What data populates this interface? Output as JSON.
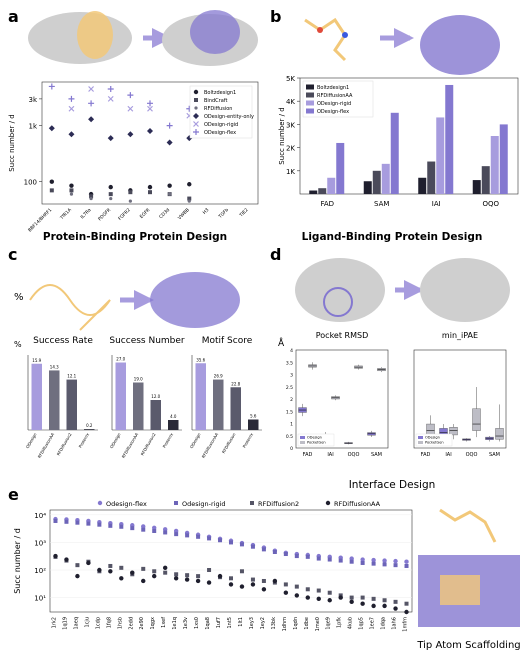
{
  "colors": {
    "purple": "#8478d0",
    "purpleLight": "#a79cde",
    "dark": "#1f1f2e",
    "gray": "#6f6f7f",
    "lightgray": "#c9c9d3",
    "structure": "#cfcfcf",
    "ligand": "#f2c879"
  },
  "panels": {
    "a": {
      "letter": "a",
      "title": "Protein-Binding Protein Design",
      "ylabel": "Succ number / d",
      "legend": [
        "Boltzdesign1",
        "BindCraft",
        "RFDiffusion",
        "ODesign-entity-only",
        "ODesign-rigid",
        "ODesign-flex"
      ],
      "chart_data": {
        "type": "scatter",
        "yscale": "log",
        "ylim": [
          40,
          6000
        ],
        "yticks": [
          "100",
          "1k",
          "3k"
        ],
        "categories": [
          "BBF14/BHRF1",
          "TfR1A",
          "IL7Ra",
          "PDGFR",
          "FGFR2",
          "EGFR",
          "CD3d",
          "VWBB",
          "H3",
          "TGFb",
          "TIE2"
        ],
        "series": [
          {
            "name": "Boltzdesign1",
            "marker": "circle",
            "values": [
              100,
              85,
              60,
              80,
              70,
              80,
              85,
              90,
              null,
              null,
              null
            ]
          },
          {
            "name": "BindCraft",
            "marker": "square",
            "values": [
              70,
              70,
              55,
              60,
              65,
              65,
              60,
              50,
              null,
              null,
              null
            ]
          },
          {
            "name": "RFDiffusion",
            "marker": "circle-small",
            "values": [
              null,
              60,
              50,
              50,
              45,
              null,
              60,
              45,
              null,
              null,
              null
            ]
          },
          {
            "name": "ODesign-entity-only",
            "marker": "diamond",
            "values": [
              900,
              700,
              1300,
              600,
              700,
              800,
              500,
              600,
              null,
              null,
              null
            ]
          },
          {
            "name": "ODesign-rigid",
            "marker": "x",
            "values": [
              null,
              2000,
              4500,
              3000,
              2000,
              2000,
              null,
              1500,
              null,
              null,
              null
            ]
          },
          {
            "name": "ODesign-flex",
            "marker": "plus",
            "values": [
              5000,
              3000,
              2500,
              4500,
              3500,
              2500,
              1000,
              2000,
              null,
              null,
              null
            ]
          }
        ]
      }
    },
    "b": {
      "letter": "b",
      "title": "Ligand-Binding Protein Design",
      "ylabel": "Succ number / d",
      "legend": [
        "Boltzdesign1",
        "RFDiffusionAA",
        "ODesign-rigid",
        "ODesign-flex"
      ],
      "chart_data": {
        "type": "bar",
        "ylim": [
          0,
          5000
        ],
        "yticks": [
          "1K",
          "2K",
          "3K",
          "4K",
          "5K"
        ],
        "categories": [
          "FAD",
          "SAM",
          "IAI",
          "OQO"
        ],
        "series": [
          {
            "name": "Boltzdesign1",
            "values": [
              150,
              550,
              700,
              600
            ]
          },
          {
            "name": "RFDiffusionAA",
            "values": [
              250,
              1000,
              1400,
              1200
            ]
          },
          {
            "name": "ODesign-rigid",
            "values": [
              700,
              1300,
              3300,
              2500
            ]
          },
          {
            "name": "ODesign-flex",
            "values": [
              2200,
              3500,
              4700,
              3000
            ]
          }
        ]
      }
    },
    "c": {
      "letter": "c",
      "pct_label": "%",
      "charts": [
        {
          "title": "Success Rate",
          "ylabel": "%",
          "type": "bar",
          "categories": [
            "ODesign",
            "RFDiffusionAA",
            "RFDiffusion2",
            "Protenix"
          ],
          "values": [
            15.9,
            14.3,
            12.1,
            0.2
          ],
          "labels": [
            "15.9",
            "14.3",
            "12.1",
            "0.2"
          ],
          "ylim": [
            0,
            18
          ]
        },
        {
          "title": "Success Number",
          "type": "bar",
          "categories": [
            "ODesign",
            "RFDiffusionAA",
            "RFDiffusion2",
            "Protenix"
          ],
          "values": [
            27.0,
            19.0,
            12.0,
            4.0
          ],
          "labels": [
            "27.0",
            "19.0",
            "12.0",
            "4.0"
          ],
          "ylim": [
            0,
            30
          ]
        },
        {
          "title": "Motif Score",
          "type": "bar",
          "categories": [
            "ODesign",
            "RFDiffusionAA",
            "RFDiffusion",
            "Protenix"
          ],
          "values": [
            35.6,
            26.9,
            22.8,
            5.6
          ],
          "labels": [
            "35.6",
            "26.9",
            "22.8",
            "5.6"
          ],
          "ylim": [
            0,
            40
          ]
        }
      ]
    },
    "d": {
      "letter": "d",
      "title": "Interface Design",
      "angstrom": "Å",
      "charts": [
        {
          "title": "Pocket RMSD",
          "type": "box",
          "categories": [
            "FAD",
            "IAI",
            "OQO",
            "SAM"
          ],
          "yticks": [
            "0",
            "0.5",
            "1",
            "1.5",
            "2",
            "2.5",
            "3",
            "3.5",
            "4"
          ],
          "ylim": [
            0,
            4
          ],
          "legend": [
            "ODesign",
            "PocketGen"
          ],
          "series": [
            {
              "name": "ODesign",
              "boxes": [
                [
                  1.3,
                  1.45,
                  1.55,
                  1.65,
                  1.8
                ],
                [
                  0.35,
                  0.4,
                  0.5,
                  0.55,
                  0.65
                ],
                [
                  0.15,
                  0.18,
                  0.2,
                  0.22,
                  0.25
                ],
                [
                  0.45,
                  0.52,
                  0.58,
                  0.63,
                  0.7
                ]
              ]
            },
            {
              "name": "PocketGen",
              "boxes": [
                [
                  3.2,
                  3.3,
                  3.35,
                  3.4,
                  3.5
                ],
                [
                  1.95,
                  2.0,
                  2.05,
                  2.1,
                  2.15
                ],
                [
                  3.2,
                  3.25,
                  3.3,
                  3.35,
                  3.4
                ],
                [
                  3.1,
                  3.15,
                  3.2,
                  3.25,
                  3.3
                ]
              ]
            }
          ]
        },
        {
          "title": "min_iPAE",
          "type": "box",
          "categories": [
            "FAD",
            "IAI",
            "OQO",
            "SAM"
          ],
          "yticks": [
            "0",
            "0.5",
            "1",
            "1.5",
            "2",
            "2.5",
            "3",
            "3.5",
            "4",
            "4.5"
          ],
          "ylim": [
            0,
            4.5
          ],
          "legend": [
            "ODesign",
            "PocketGen"
          ],
          "series": [
            {
              "name": "ODesign",
              "boxes": [
                [
                  0.45,
                  0.48,
                  0.5,
                  0.52,
                  0.55
                ],
                [
                  0.5,
                  0.6,
                  0.7,
                  0.9,
                  1.1
                ],
                [
                  0.3,
                  0.35,
                  0.38,
                  0.42,
                  0.45
                ],
                [
                  0.3,
                  0.38,
                  0.45,
                  0.5,
                  0.55
                ]
              ]
            },
            {
              "name": "PocketGen",
              "boxes": [
                [
                  0.4,
                  0.55,
                  0.8,
                  1.1,
                  1.5
                ],
                [
                  0.4,
                  0.6,
                  0.8,
                  0.95,
                  1.1
                ],
                [
                  0.5,
                  0.8,
                  1.1,
                  1.8,
                  2.8
                ],
                [
                  0.3,
                  0.4,
                  0.55,
                  0.9,
                  2.0
                ]
              ]
            }
          ]
        }
      ]
    },
    "e": {
      "letter": "e",
      "title": "Tip Atom Scaffolding",
      "ylabel": "Succ number / d",
      "legend": [
        "Odesign-flex",
        "Odesign-rigid",
        "RFDiffusion2",
        "RFDiffusionAA"
      ],
      "chart_data": {
        "type": "scatter",
        "yscale": "log",
        "ylim": [
          3,
          15000
        ],
        "yticks": [
          "10¹",
          "10²",
          "10³",
          "10⁴"
        ],
        "categories": [
          "1rk2",
          "1q19",
          "1aeq",
          "1cju",
          "1cdp",
          "1fq8",
          "1hsb",
          "2edd",
          "2e90",
          "1qgx",
          "1xef",
          "1e1q",
          "1e3v",
          "1xs0",
          "1qa8",
          "1uf7",
          "1nt5",
          "1lt1",
          "1ey3",
          "1ey2",
          "13bk",
          "1dhm",
          "1qdn",
          "1dbe",
          "1me0",
          "1qe9",
          "1pfk",
          "4kub",
          "1qp5",
          "1ee7",
          "1dqa",
          "1ah6",
          "1mfm"
        ],
        "series": [
          {
            "name": "Odesign-flex",
            "marker": "circle",
            "values": [
              7000,
              6800,
              6400,
              6000,
              5400,
              5000,
              4600,
              4200,
              3800,
              3400,
              3000,
              2600,
              2200,
              1900,
              1600,
              1350,
              1150,
              950,
              800,
              650,
              500,
              420,
              380,
              350,
              320,
              300,
              280,
              260,
              240,
              230,
              220,
              210,
              200
            ]
          },
          {
            "name": "Odesign-rigid",
            "marker": "square",
            "values": [
              6000,
              5600,
              5200,
              4800,
              4400,
              4000,
              3700,
              3300,
              2900,
              2600,
              2300,
              2000,
              1800,
              1600,
              1400,
              1200,
              1000,
              850,
              700,
              560,
              450,
              380,
              320,
              300,
              260,
              240,
              220,
              200,
              180,
              170,
              160,
              150,
              140
            ]
          },
          {
            "name": "RFDiffusion2",
            "marker": "square-dark",
            "values": [
              300,
              220,
              150,
              200,
              90,
              140,
              120,
              70,
              110,
              90,
              80,
              70,
              65,
              60,
              100,
              55,
              50,
              90,
              45,
              40,
              35,
              30,
              25,
              20,
              18,
              15,
              12,
              10,
              10,
              9,
              8,
              7,
              6
            ]
          },
          {
            "name": "RFDiffusionAA",
            "marker": "circle-dark",
            "values": [
              320,
              240,
              60,
              180,
              100,
              90,
              50,
              80,
              40,
              60,
              120,
              50,
              45,
              40,
              35,
              60,
              30,
              25,
              30,
              20,
              40,
              15,
              12,
              10,
              9,
              8,
              10,
              7,
              6,
              5,
              5,
              4,
              3
            ]
          }
        ]
      }
    }
  }
}
